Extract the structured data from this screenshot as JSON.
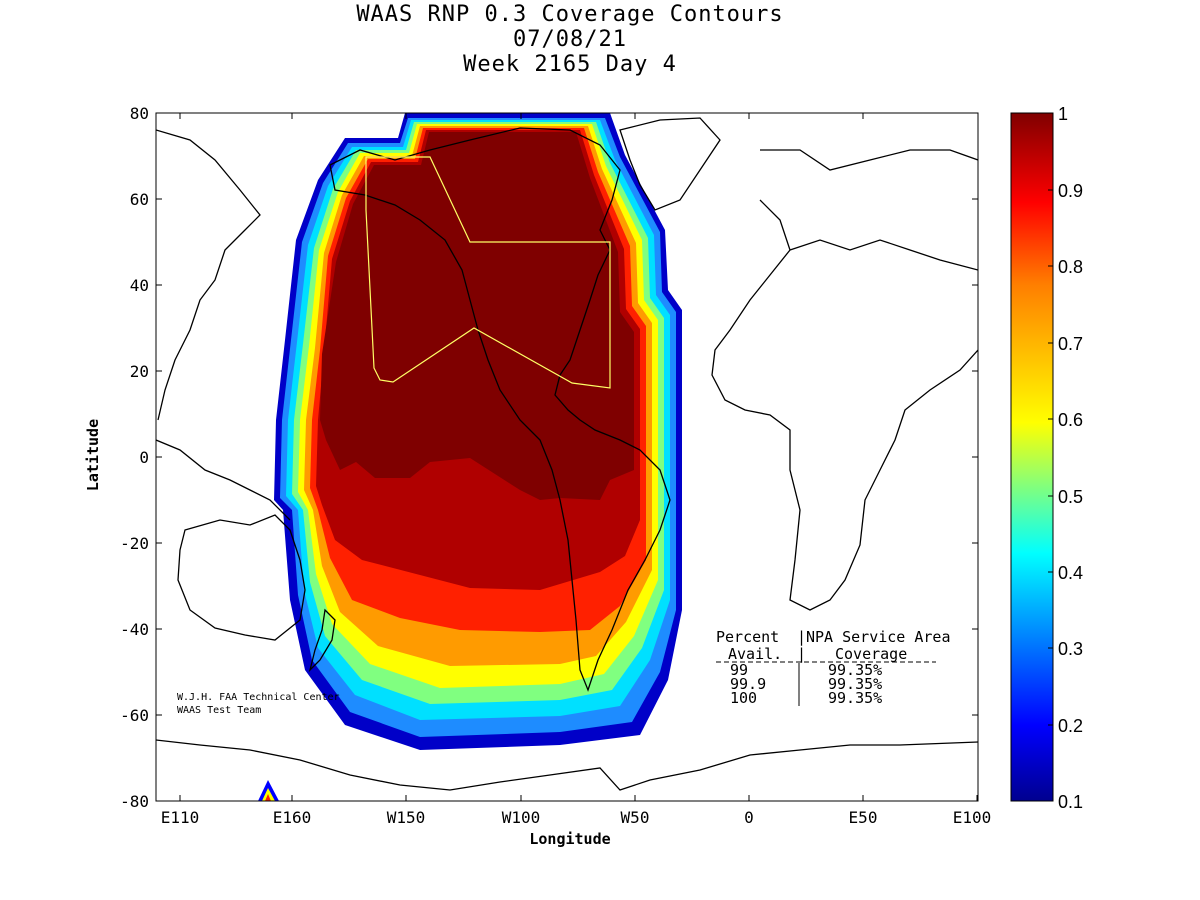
{
  "header": {
    "title_line1": "WAAS RNP 0.3 Coverage Contours",
    "title_line2": "07/08/21",
    "title_line3": "Week 2165 Day 4"
  },
  "axes": {
    "xlabel": "Longitude",
    "ylabel": "Latitude",
    "x_ticks": [
      "E110",
      "E160",
      "W150",
      "W100",
      "W50",
      "0",
      "E50",
      "E100"
    ],
    "y_ticks": [
      "80",
      "60",
      "40",
      "20",
      "0",
      "-20",
      "-40",
      "-60",
      "-80"
    ]
  },
  "colorbar": {
    "min": 0.1,
    "max": 1,
    "labels": [
      "1",
      "0.9",
      "0.8",
      "0.7",
      "0.6",
      "0.5",
      "0.4",
      "0.3",
      "0.2",
      "0.1"
    ],
    "colormap": "jet"
  },
  "credits": {
    "line1": "W.J.H. FAA Technical Center",
    "line2": "WAAS Test Team"
  },
  "stats_table": {
    "header_col1_line1": "Percent",
    "header_col1_line2": "Avail.",
    "header_col2_line1": "NPA Service Area",
    "header_col2_line2": "Coverage",
    "rows": [
      {
        "avail": "99",
        "coverage": "99.35%"
      },
      {
        "avail": "99.9",
        "coverage": "99.35%"
      },
      {
        "avail": "100",
        "coverage": "99.35%"
      }
    ]
  },
  "colors": {
    "full_coverage": "#7f0000",
    "service_area_outline": "#ffff66",
    "coastline": "#000000"
  }
}
